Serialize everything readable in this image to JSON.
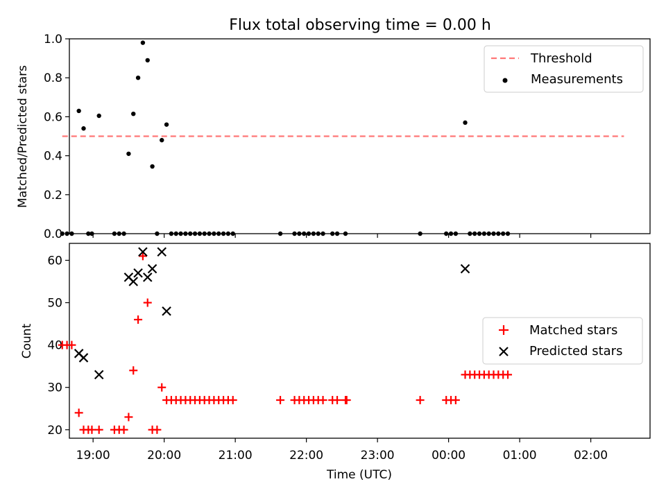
{
  "title": "Flux total observing time = 0.00 h",
  "chart_data": [
    {
      "type": "scatter",
      "ylabel": "Matched/Predicted stars",
      "ylim": [
        0,
        1.0
      ],
      "yticks": [
        0,
        0.2,
        0.4,
        0.6,
        0.8,
        1.0
      ],
      "ytick_labels": [
        "0.0",
        "0.2",
        "0.4",
        "0.6",
        "0.8",
        "1.0"
      ],
      "xlim": [
        "18:40",
        "02:50"
      ],
      "legend_position": "top-right",
      "threshold": {
        "name": "Threshold",
        "value": 0.5,
        "x_range": [
          "18:34",
          "02:28"
        ],
        "color": "#ff7777"
      },
      "series": [
        {
          "name": "Measurements",
          "color": "#000000",
          "points": [
            [
              "18:34",
              0
            ],
            [
              "18:38",
              0
            ],
            [
              "18:42",
              0
            ],
            [
              "18:48",
              0.63
            ],
            [
              "18:52",
              0.54
            ],
            [
              "18:56",
              0
            ],
            [
              "18:59",
              0
            ],
            [
              "19:05",
              0.605
            ],
            [
              "19:18",
              0
            ],
            [
              "19:22",
              0
            ],
            [
              "19:26",
              0
            ],
            [
              "19:30",
              0.41
            ],
            [
              "19:34",
              0.615
            ],
            [
              "19:38",
              0.8
            ],
            [
              "19:42",
              0.98
            ],
            [
              "19:46",
              0.89
            ],
            [
              "19:50",
              0.345
            ],
            [
              "19:54",
              0
            ],
            [
              "19:58",
              0.48
            ],
            [
              "20:02",
              0.56
            ],
            [
              "20:06",
              0
            ],
            [
              "20:10",
              0
            ],
            [
              "20:14",
              0
            ],
            [
              "20:18",
              0
            ],
            [
              "20:22",
              0
            ],
            [
              "20:26",
              0
            ],
            [
              "20:30",
              0
            ],
            [
              "20:34",
              0
            ],
            [
              "20:38",
              0
            ],
            [
              "20:42",
              0
            ],
            [
              "20:46",
              0
            ],
            [
              "20:50",
              0
            ],
            [
              "20:54",
              0
            ],
            [
              "20:58",
              0
            ],
            [
              "21:38",
              0
            ],
            [
              "21:50",
              0
            ],
            [
              "21:54",
              0
            ],
            [
              "21:58",
              0
            ],
            [
              "22:02",
              0
            ],
            [
              "22:06",
              0
            ],
            [
              "22:10",
              0
            ],
            [
              "22:14",
              0
            ],
            [
              "22:22",
              0
            ],
            [
              "22:26",
              0
            ],
            [
              "22:33",
              0
            ],
            [
              "23:36",
              0
            ],
            [
              "23:58",
              0
            ],
            [
              "00:02",
              0
            ],
            [
              "00:06",
              0
            ],
            [
              "00:14",
              0.57
            ],
            [
              "00:18",
              0
            ],
            [
              "00:22",
              0
            ],
            [
              "00:26",
              0
            ],
            [
              "00:30",
              0
            ],
            [
              "00:34",
              0
            ],
            [
              "00:38",
              0
            ],
            [
              "00:42",
              0
            ],
            [
              "00:46",
              0
            ],
            [
              "00:50",
              0
            ]
          ]
        }
      ]
    },
    {
      "type": "scatter",
      "xlabel": "Time (UTC)",
      "ylabel": "Count",
      "ylim": [
        18,
        64
      ],
      "yticks": [
        20,
        30,
        40,
        50,
        60
      ],
      "ytick_labels": [
        "20",
        "30",
        "40",
        "50",
        "60"
      ],
      "xlim": [
        "18:40",
        "02:50"
      ],
      "xtick_labels": [
        "19:00",
        "20:00",
        "21:00",
        "22:00",
        "23:00",
        "00:00",
        "01:00",
        "02:00"
      ],
      "legend_position": "center-right",
      "series": [
        {
          "name": "Matched stars",
          "marker": "plus",
          "color": "#ff0000",
          "points": [
            [
              "18:34",
              40
            ],
            [
              "18:38",
              40
            ],
            [
              "18:42",
              40
            ],
            [
              "18:48",
              24
            ],
            [
              "18:52",
              20
            ],
            [
              "18:56",
              20
            ],
            [
              "18:59",
              20
            ],
            [
              "19:05",
              20
            ],
            [
              "19:18",
              20
            ],
            [
              "19:22",
              20
            ],
            [
              "19:26",
              20
            ],
            [
              "19:30",
              23
            ],
            [
              "19:34",
              34
            ],
            [
              "19:38",
              46
            ],
            [
              "19:42",
              61
            ],
            [
              "19:46",
              50
            ],
            [
              "19:50",
              20
            ],
            [
              "19:54",
              20
            ],
            [
              "19:58",
              30
            ],
            [
              "20:02",
              27
            ],
            [
              "20:06",
              27
            ],
            [
              "20:10",
              27
            ],
            [
              "20:14",
              27
            ],
            [
              "20:18",
              27
            ],
            [
              "20:22",
              27
            ],
            [
              "20:26",
              27
            ],
            [
              "20:30",
              27
            ],
            [
              "20:34",
              27
            ],
            [
              "20:38",
              27
            ],
            [
              "20:42",
              27
            ],
            [
              "20:46",
              27
            ],
            [
              "20:50",
              27
            ],
            [
              "20:54",
              27
            ],
            [
              "20:58",
              27
            ],
            [
              "21:38",
              27
            ],
            [
              "21:50",
              27
            ],
            [
              "21:54",
              27
            ],
            [
              "21:58",
              27
            ],
            [
              "22:02",
              27
            ],
            [
              "22:06",
              27
            ],
            [
              "22:10",
              27
            ],
            [
              "22:14",
              27
            ],
            [
              "22:22",
              27
            ],
            [
              "22:26",
              27
            ],
            [
              "22:33",
              27
            ],
            [
              "22:34",
              27
            ],
            [
              "23:36",
              27
            ],
            [
              "23:58",
              27
            ],
            [
              "00:02",
              27
            ],
            [
              "00:06",
              27
            ],
            [
              "00:14",
              33
            ],
            [
              "00:18",
              33
            ],
            [
              "00:22",
              33
            ],
            [
              "00:26",
              33
            ],
            [
              "00:30",
              33
            ],
            [
              "00:34",
              33
            ],
            [
              "00:38",
              33
            ],
            [
              "00:42",
              33
            ],
            [
              "00:46",
              33
            ],
            [
              "00:50",
              33
            ]
          ]
        },
        {
          "name": "Predicted stars",
          "marker": "x",
          "color": "#000000",
          "points": [
            [
              "18:48",
              38
            ],
            [
              "18:52",
              37
            ],
            [
              "19:05",
              33
            ],
            [
              "19:30",
              56
            ],
            [
              "19:34",
              55
            ],
            [
              "19:38",
              57
            ],
            [
              "19:42",
              62
            ],
            [
              "19:46",
              56
            ],
            [
              "19:50",
              58
            ],
            [
              "19:58",
              62
            ],
            [
              "20:02",
              48
            ],
            [
              "00:14",
              58
            ]
          ]
        }
      ]
    }
  ]
}
